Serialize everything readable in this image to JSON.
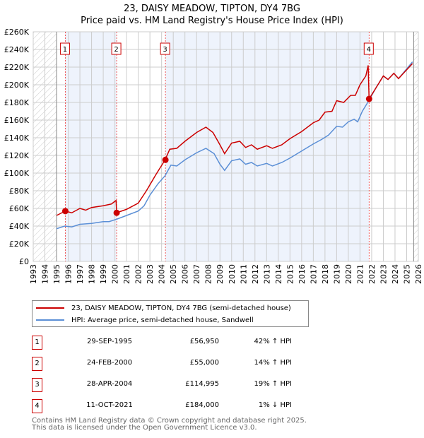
{
  "chart_data": {
    "type": "line",
    "title": "23, DAISY MEADOW, TIPTON, DY4 7BG",
    "subtitle": "Price paid vs. HM Land Registry's House Price Index (HPI)",
    "xlim": [
      1993,
      2026
    ],
    "ylim": [
      0,
      260000
    ],
    "x_ticks": [
      "1993",
      "1994",
      "1995",
      "1996",
      "1997",
      "1998",
      "1999",
      "2000",
      "2001",
      "2002",
      "2003",
      "2004",
      "2005",
      "2006",
      "2007",
      "2008",
      "2009",
      "2010",
      "2011",
      "2012",
      "2013",
      "2014",
      "2015",
      "2016",
      "2017",
      "2018",
      "2019",
      "2020",
      "2021",
      "2022",
      "2023",
      "2024",
      "2025",
      "2026"
    ],
    "y_ticks": [
      "£0",
      "£20K",
      "£40K",
      "£60K",
      "£80K",
      "£100K",
      "£120K",
      "£140K",
      "£160K",
      "£180K",
      "£200K",
      "£220K",
      "£240K",
      "£260K"
    ],
    "series": [
      {
        "name": "23, DAISY MEADOW, TIPTON, DY4 7BG (semi-detached house)",
        "color": "#cc0000",
        "points": [
          [
            1995.0,
            52000
          ],
          [
            1995.75,
            57000
          ],
          [
            1996.3,
            55000
          ],
          [
            1997,
            60000
          ],
          [
            1997.5,
            58000
          ],
          [
            1998,
            61000
          ],
          [
            1999,
            63000
          ],
          [
            1999.7,
            65000
          ],
          [
            2000.1,
            69000
          ],
          [
            2000.15,
            55000
          ],
          [
            2001,
            59000
          ],
          [
            2002,
            66000
          ],
          [
            2002.7,
            80000
          ],
          [
            2003.5,
            98000
          ],
          [
            2004.3,
            115000
          ],
          [
            2004.7,
            127000
          ],
          [
            2005.3,
            128000
          ],
          [
            2006,
            136000
          ],
          [
            2007,
            146000
          ],
          [
            2007.8,
            152000
          ],
          [
            2008.4,
            146000
          ],
          [
            2009.0,
            132000
          ],
          [
            2009.4,
            122000
          ],
          [
            2010,
            134000
          ],
          [
            2010.7,
            136000
          ],
          [
            2011.2,
            129000
          ],
          [
            2011.7,
            132000
          ],
          [
            2012.2,
            127000
          ],
          [
            2013,
            131000
          ],
          [
            2013.5,
            128000
          ],
          [
            2014.3,
            132000
          ],
          [
            2015,
            139000
          ],
          [
            2016,
            147000
          ],
          [
            2017,
            157000
          ],
          [
            2017.5,
            160000
          ],
          [
            2018,
            169000
          ],
          [
            2018.6,
            170000
          ],
          [
            2019.0,
            182000
          ],
          [
            2019.6,
            180000
          ],
          [
            2020.2,
            188000
          ],
          [
            2020.6,
            188000
          ],
          [
            2021.0,
            200000
          ],
          [
            2021.5,
            210000
          ],
          [
            2021.7,
            222000
          ],
          [
            2021.78,
            184000
          ],
          [
            2022.3,
            195000
          ],
          [
            2023,
            210000
          ],
          [
            2023.4,
            206000
          ],
          [
            2023.9,
            213000
          ],
          [
            2024.3,
            207000
          ],
          [
            2025,
            217000
          ],
          [
            2025.5,
            224000
          ]
        ]
      },
      {
        "name": "HPI: Average price, semi-detached house, Sandwell",
        "color": "#5b8fd6",
        "points": [
          [
            1995.0,
            37000
          ],
          [
            1995.7,
            40000
          ],
          [
            1996.3,
            39000
          ],
          [
            1997,
            42000
          ],
          [
            1998,
            43000
          ],
          [
            1999,
            45000
          ],
          [
            1999.5,
            45000
          ],
          [
            2000.2,
            48000
          ],
          [
            2001,
            52000
          ],
          [
            2002,
            57000
          ],
          [
            2002.5,
            63000
          ],
          [
            2003,
            75000
          ],
          [
            2003.7,
            88000
          ],
          [
            2004.3,
            97000
          ],
          [
            2004.8,
            109000
          ],
          [
            2005.3,
            108000
          ],
          [
            2006,
            115000
          ],
          [
            2007,
            123000
          ],
          [
            2007.8,
            128000
          ],
          [
            2008.5,
            122000
          ],
          [
            2009.0,
            110000
          ],
          [
            2009.4,
            103000
          ],
          [
            2010,
            114000
          ],
          [
            2010.7,
            116000
          ],
          [
            2011.2,
            110000
          ],
          [
            2011.7,
            112000
          ],
          [
            2012.2,
            108000
          ],
          [
            2013,
            111000
          ],
          [
            2013.5,
            108000
          ],
          [
            2014.3,
            112000
          ],
          [
            2015,
            117000
          ],
          [
            2016,
            125000
          ],
          [
            2017,
            133000
          ],
          [
            2017.7,
            138000
          ],
          [
            2018.3,
            143000
          ],
          [
            2019,
            153000
          ],
          [
            2019.5,
            152000
          ],
          [
            2020,
            158000
          ],
          [
            2020.5,
            161000
          ],
          [
            2020.8,
            158000
          ],
          [
            2021.2,
            170000
          ],
          [
            2021.8,
            183000
          ],
          [
            2022.3,
            195000
          ],
          [
            2023,
            210000
          ],
          [
            2023.4,
            206000
          ],
          [
            2023.9,
            213000
          ],
          [
            2024.3,
            207000
          ],
          [
            2025,
            218000
          ],
          [
            2025.5,
            226000
          ]
        ]
      }
    ],
    "sales": [
      {
        "label": "1",
        "x": 1995.75,
        "y": 56950,
        "date": "29-SEP-1995",
        "price": "£56,950",
        "hpi": "42% ↑ HPI"
      },
      {
        "label": "2",
        "x": 2000.15,
        "y": 55000,
        "date": "24-FEB-2000",
        "price": "£55,000",
        "hpi": "14% ↑ HPI"
      },
      {
        "label": "3",
        "x": 2004.33,
        "y": 114995,
        "date": "28-APR-2004",
        "price": "£114,995",
        "hpi": "19% ↑ HPI"
      },
      {
        "label": "4",
        "x": 2021.78,
        "y": 184000,
        "date": "11-OCT-2021",
        "price": "£184,000",
        "hpi": "1% ↓ HPI"
      }
    ],
    "data_start": 1995,
    "data_end": 2025.6
  },
  "footer": [
    "Contains HM Land Registry data © Crown copyright and database right 2025.",
    "This data is licensed under the Open Government Licence v3.0."
  ]
}
